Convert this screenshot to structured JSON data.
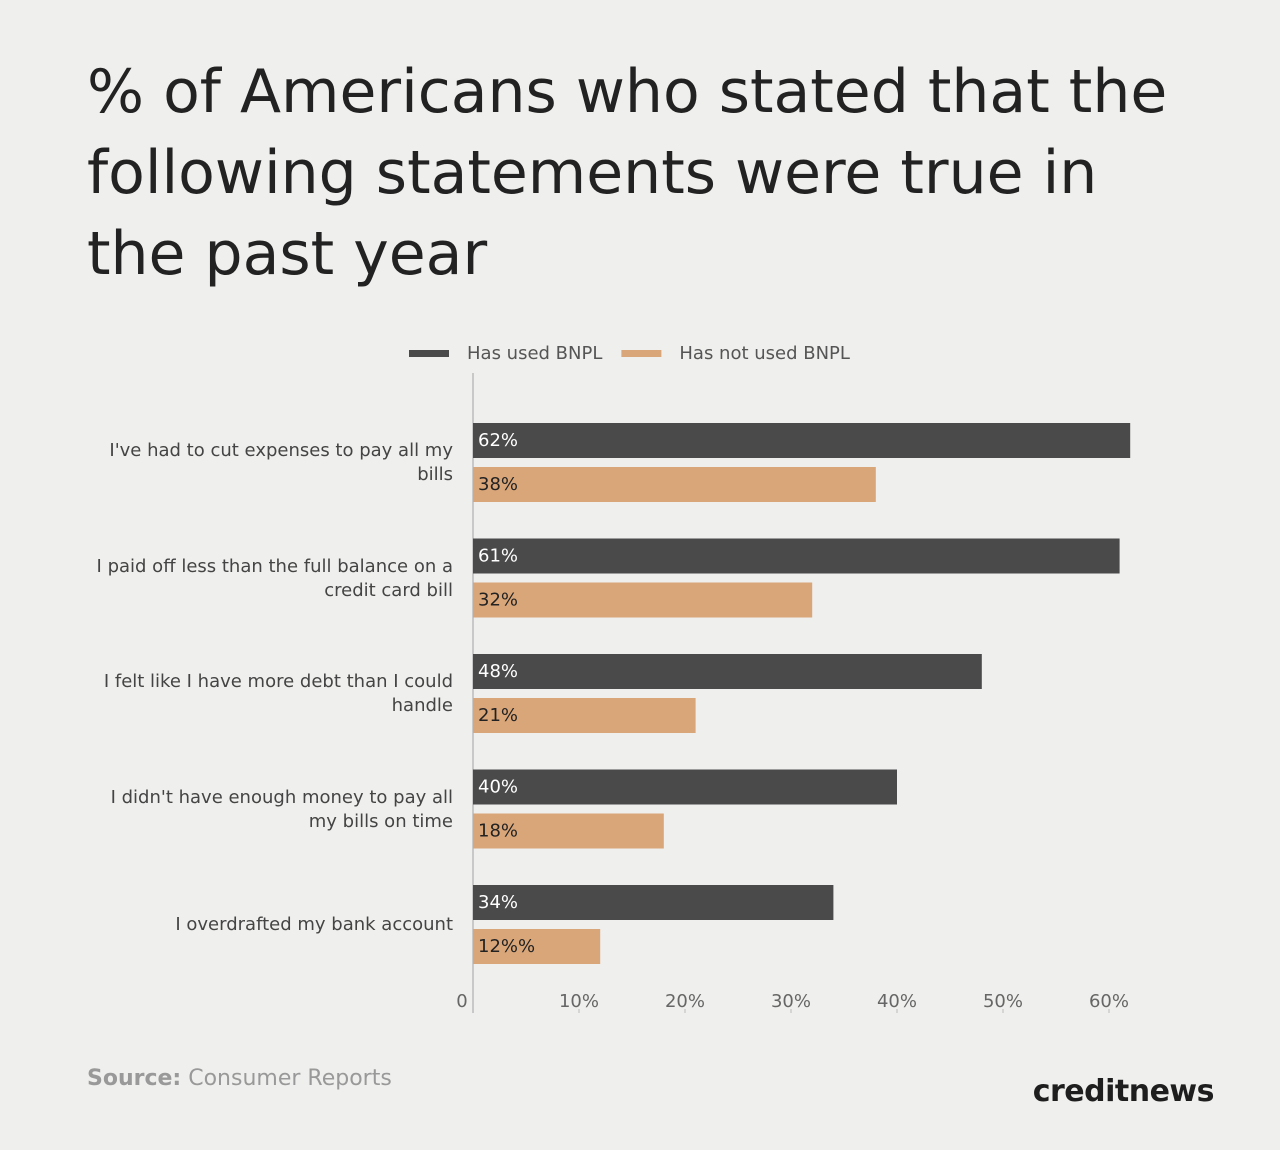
{
  "chart_data": {
    "type": "bar",
    "orientation": "horizontal",
    "title": "% of Americans who stated that the following statements were true in the past year",
    "categories": [
      "I've had to cut expenses to pay all my bills",
      "I paid off less than the full balance on a credit card bill",
      "I felt like I have more debt than I could handle",
      "I didn't have enough money to pay all my bills on time",
      "I overdrafted my bank account"
    ],
    "series": [
      {
        "name": "Has used BNPL",
        "color": "#4a4a4a",
        "values": [
          62,
          61,
          48,
          40,
          34
        ],
        "value_labels": [
          "62%",
          "61%",
          "48%",
          "40%",
          "34%"
        ]
      },
      {
        "name": "Has not used BNPL",
        "color": "#d9a679",
        "values": [
          38,
          32,
          21,
          18,
          12
        ],
        "value_labels": [
          "38%",
          "32%",
          "21%",
          "18%",
          "12%%"
        ]
      }
    ],
    "xlim": [
      0,
      65
    ],
    "xticks": [
      0,
      {
        "value": 10,
        "label": "10%"
      },
      {
        "value": 20,
        "label": "20%"
      },
      {
        "value": 30,
        "label": "30%"
      },
      {
        "value": 40,
        "label": "40%"
      },
      {
        "value": 50,
        "label": "50%"
      },
      {
        "value": 60,
        "label": "60%"
      }
    ],
    "legend": "top",
    "grid": false
  },
  "footer": {
    "source_label": "Source:",
    "source": "Consumer Reports",
    "brand": "creditnews"
  }
}
